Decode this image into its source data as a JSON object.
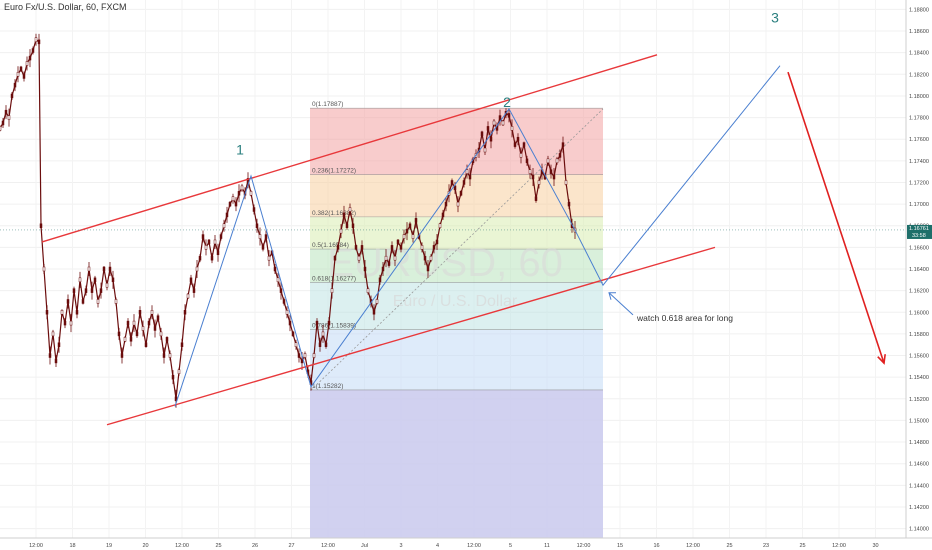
{
  "header": {
    "symbol_title": "Euro Fx/U.S. Dollar, 60, FXCM"
  },
  "watermark": {
    "main": "EURUSD, 60",
    "sub": "Euro / U.S. Dollar"
  },
  "colors": {
    "candle": "#6b0d0d",
    "channel": "#e8383b",
    "projection": "#4a7fd0",
    "wave_label": "#2a7f7f",
    "arrow_red": "#e02020",
    "last_price_bg": "#1e6f6a"
  },
  "price_scale": {
    "labels": [
      "1.18800",
      "1.18600",
      "1.18400",
      "1.18200",
      "1.18000",
      "1.17800",
      "1.17600",
      "1.17400",
      "1.17200",
      "1.17000",
      "1.16800",
      "1.16600",
      "1.16400",
      "1.16200",
      "1.16000",
      "1.15800",
      "1.15600",
      "1.15400",
      "1.15200",
      "1.15000",
      "1.14800",
      "1.14600",
      "1.14400",
      "1.14200",
      "1.14000"
    ],
    "last_price": "1.16761",
    "last_price_sub": "33:58"
  },
  "time_scale": {
    "labels": [
      "12:00",
      "18",
      "19",
      "20",
      "12:00",
      "25",
      "26",
      "27",
      "12:00",
      "Jul",
      "3",
      "4",
      "12:00",
      "5",
      "11",
      "12:00",
      "15",
      "16",
      "12:00",
      "25",
      "23",
      "25",
      "12:00",
      "30"
    ]
  },
  "fib_levels": [
    {
      "ratio": 0,
      "label": "0(1.17887)",
      "price": 1.17887,
      "color": "#f2a3a3"
    },
    {
      "ratio": 0.236,
      "label": "0.236(1.17272)",
      "price": 1.17272,
      "color": "#f7d0a0"
    },
    {
      "ratio": 0.382,
      "label": "0.382(1.16882)",
      "price": 1.16882,
      "color": "#d8ecb0"
    },
    {
      "ratio": 0.5,
      "label": "0.5(1.16584)",
      "price": 1.16584,
      "color": "#b9e3bd"
    },
    {
      "ratio": 0.618,
      "label": "0.618(1.16277)",
      "price": 1.16277,
      "color": "#bfe3e3"
    },
    {
      "ratio": 0.786,
      "label": "0.786(1.15839)",
      "price": 1.15839,
      "color": "#c2dbf5"
    },
    {
      "ratio": 1,
      "label": "1(1.15282)",
      "price": 1.15282,
      "color": "#d8d8d8"
    },
    {
      "ratio": 1.618,
      "label": "",
      "price": 1.137,
      "color": "#c8c8f2"
    }
  ],
  "wave_labels": [
    "1",
    "2",
    "3"
  ],
  "annotation": {
    "text": "watch 0.618 area for long"
  },
  "chart_data": {
    "type": "line",
    "title": "Euro Fx/U.S. Dollar, 60, FXCM",
    "xlabel": "",
    "ylabel": "",
    "ylim": [
      1.1395,
      1.1885
    ],
    "grid": true,
    "x_label_positions_note": "",
    "series": [
      {
        "values": [
          [
            0,
            1.177
          ],
          [
            3,
            1.1775
          ],
          [
            6,
            1.1785
          ],
          [
            9,
            1.178
          ],
          [
            12,
            1.18
          ],
          [
            15,
            1.181
          ],
          [
            18,
            1.182
          ],
          [
            21,
            1.1825
          ],
          [
            24,
            1.1818
          ],
          [
            27,
            1.183
          ],
          [
            30,
            1.1835
          ],
          [
            33,
            1.1842
          ],
          [
            36,
            1.1852
          ],
          [
            39,
            1.185
          ],
          [
            41,
            1.168
          ],
          [
            44,
            1.164
          ],
          [
            47,
            1.16
          ],
          [
            50,
            1.156
          ],
          [
            53,
            1.158
          ],
          [
            56,
            1.1555
          ],
          [
            59,
            1.157
          ],
          [
            62,
            1.16
          ],
          [
            65,
            1.159
          ],
          [
            68,
            1.161
          ],
          [
            71,
            1.159
          ],
          [
            74,
            1.162
          ],
          [
            77,
            1.16
          ],
          [
            80,
            1.163
          ],
          [
            83,
            1.161
          ],
          [
            86,
            1.162
          ],
          [
            89,
            1.164
          ],
          [
            92,
            1.162
          ],
          [
            95,
            1.163
          ],
          [
            98,
            1.161
          ],
          [
            101,
            1.162
          ],
          [
            104,
            1.164
          ],
          [
            107,
            1.1625
          ],
          [
            110,
            1.164
          ],
          [
            113,
            1.163
          ],
          [
            116,
            1.161
          ],
          [
            119,
            1.158
          ],
          [
            122,
            1.156
          ],
          [
            125,
            1.1575
          ],
          [
            128,
            1.159
          ],
          [
            131,
            1.1575
          ],
          [
            134,
            1.159
          ],
          [
            137,
            1.158
          ],
          [
            140,
            1.16
          ],
          [
            143,
            1.1585
          ],
          [
            146,
            1.157
          ],
          [
            149,
            1.159
          ],
          [
            152,
            1.16
          ],
          [
            155,
            1.1585
          ],
          [
            158,
            1.1595
          ],
          [
            161,
            1.158
          ],
          [
            164,
            1.156
          ],
          [
            167,
            1.1575
          ],
          [
            170,
            1.156
          ],
          [
            173,
            1.154
          ],
          [
            176,
            1.152
          ],
          [
            179,
            1.1545
          ],
          [
            182,
            1.157
          ],
          [
            185,
            1.16
          ],
          [
            188,
            1.1615
          ],
          [
            191,
            1.163
          ],
          [
            194,
            1.162
          ],
          [
            197,
            1.164
          ],
          [
            200,
            1.165
          ],
          [
            203,
            1.167
          ],
          [
            206,
            1.166
          ],
          [
            209,
            1.1665
          ],
          [
            212,
            1.165
          ],
          [
            215,
            1.1665
          ],
          [
            218,
            1.1655
          ],
          [
            221,
            1.167
          ],
          [
            224,
            1.168
          ],
          [
            227,
            1.169
          ],
          [
            230,
            1.17
          ],
          [
            233,
            1.1705
          ],
          [
            236,
            1.17
          ],
          [
            239,
            1.171
          ],
          [
            242,
            1.1715
          ],
          [
            245,
            1.171
          ],
          [
            248,
            1.1722
          ],
          [
            251,
            1.171
          ],
          [
            254,
            1.1695
          ],
          [
            257,
            1.168
          ],
          [
            260,
            1.167
          ],
          [
            263,
            1.166
          ],
          [
            266,
            1.167
          ],
          [
            269,
            1.165
          ],
          [
            272,
            1.1655
          ],
          [
            275,
            1.164
          ],
          [
            278,
            1.163
          ],
          [
            281,
            1.162
          ],
          [
            284,
            1.161
          ],
          [
            287,
            1.16
          ],
          [
            290,
            1.159
          ],
          [
            293,
            1.158
          ],
          [
            296,
            1.157
          ],
          [
            299,
            1.156
          ],
          [
            302,
            1.1555
          ],
          [
            305,
            1.156
          ],
          [
            308,
            1.1545
          ],
          [
            311,
            1.1535
          ],
          [
            314,
            1.156
          ],
          [
            317,
            1.159
          ],
          [
            320,
            1.157
          ],
          [
            323,
            1.158
          ],
          [
            326,
            1.157
          ],
          [
            329,
            1.159
          ],
          [
            332,
            1.162
          ],
          [
            335,
            1.165
          ],
          [
            338,
            1.166
          ],
          [
            341,
            1.1675
          ],
          [
            344,
            1.169
          ],
          [
            347,
            1.168
          ],
          [
            350,
            1.1695
          ],
          [
            353,
            1.168
          ],
          [
            356,
            1.166
          ],
          [
            359,
            1.165
          ],
          [
            362,
            1.166
          ],
          [
            365,
            1.164
          ],
          [
            368,
            1.162
          ],
          [
            371,
            1.161
          ],
          [
            374,
            1.16
          ],
          [
            377,
            1.161
          ],
          [
            380,
            1.163
          ],
          [
            383,
            1.164
          ],
          [
            386,
            1.165
          ],
          [
            389,
            1.1645
          ],
          [
            392,
            1.166
          ],
          [
            395,
            1.165
          ],
          [
            398,
            1.1665
          ],
          [
            401,
            1.166
          ],
          [
            404,
            1.167
          ],
          [
            407,
            1.1675
          ],
          [
            410,
            1.168
          ],
          [
            413,
            1.167
          ],
          [
            416,
            1.1685
          ],
          [
            419,
            1.167
          ],
          [
            422,
            1.166
          ],
          [
            425,
            1.165
          ],
          [
            428,
            1.164
          ],
          [
            431,
            1.165
          ],
          [
            434,
            1.166
          ],
          [
            437,
            1.1665
          ],
          [
            440,
            1.168
          ],
          [
            443,
            1.169
          ],
          [
            446,
            1.17
          ],
          [
            449,
            1.171
          ],
          [
            452,
            1.172
          ],
          [
            455,
            1.1715
          ],
          [
            458,
            1.17
          ],
          [
            461,
            1.171
          ],
          [
            464,
            1.172
          ],
          [
            467,
            1.173
          ],
          [
            470,
            1.1725
          ],
          [
            473,
            1.174
          ],
          [
            476,
            1.1745
          ],
          [
            479,
            1.175
          ],
          [
            482,
            1.1765
          ],
          [
            485,
            1.175
          ],
          [
            488,
            1.177
          ],
          [
            491,
            1.176
          ],
          [
            494,
            1.1775
          ],
          [
            497,
            1.177
          ],
          [
            500,
            1.178
          ],
          [
            503,
            1.1775
          ],
          [
            506,
            1.1784
          ],
          [
            509,
            1.1782
          ],
          [
            512,
            1.177
          ],
          [
            515,
            1.1755
          ],
          [
            518,
            1.176
          ],
          [
            521,
            1.1745
          ],
          [
            524,
            1.1755
          ],
          [
            527,
            1.174
          ],
          [
            530,
            1.173
          ],
          [
            533,
            1.1725
          ],
          [
            536,
            1.1705
          ],
          [
            539,
            1.172
          ],
          [
            542,
            1.173
          ],
          [
            545,
            1.1725
          ],
          [
            548,
            1.174
          ],
          [
            551,
            1.173
          ],
          [
            554,
            1.1725
          ],
          [
            557,
            1.174
          ],
          [
            560,
            1.1745
          ],
          [
            563,
            1.1755
          ],
          [
            566,
            1.172
          ],
          [
            569,
            1.17
          ],
          [
            572,
            1.168
          ],
          [
            575,
            1.1676
          ]
        ]
      }
    ],
    "channel_lines": [
      {
        "x": [
          42,
          657
        ],
        "y": [
          1.1665,
          1.1838
        ]
      },
      {
        "x": [
          107,
          715
        ],
        "y": [
          1.1496,
          1.166
        ]
      }
    ],
    "projection_path": {
      "x": [
        175,
        251,
        311,
        509,
        575,
        603,
        780
      ],
      "y": [
        1.1513,
        1.1726,
        1.1531,
        1.1788,
        1.1676,
        1.1625,
        1.1828
      ]
    },
    "forecast_arrow": {
      "x": [
        788,
        884
      ],
      "y": [
        1.1822,
        1.1553
      ]
    },
    "fib_box_x": [
      310,
      603
    ],
    "fib_x_label": 312,
    "fib_dotted_line": {
      "x": [
        311,
        603
      ],
      "y": [
        1.1528,
        1.1788
      ]
    },
    "wave_label_points": [
      {
        "label": "1",
        "x": 240,
        "y": 1.1746
      },
      {
        "label": "2",
        "x": 507,
        "y": 1.179
      },
      {
        "label": "3",
        "x": 775,
        "y": 1.1868
      }
    ],
    "annotation_point": {
      "x": 637,
      "y": 1.1592,
      "arrow_to_x": 609,
      "arrow_to_y": 1.1618
    }
  }
}
